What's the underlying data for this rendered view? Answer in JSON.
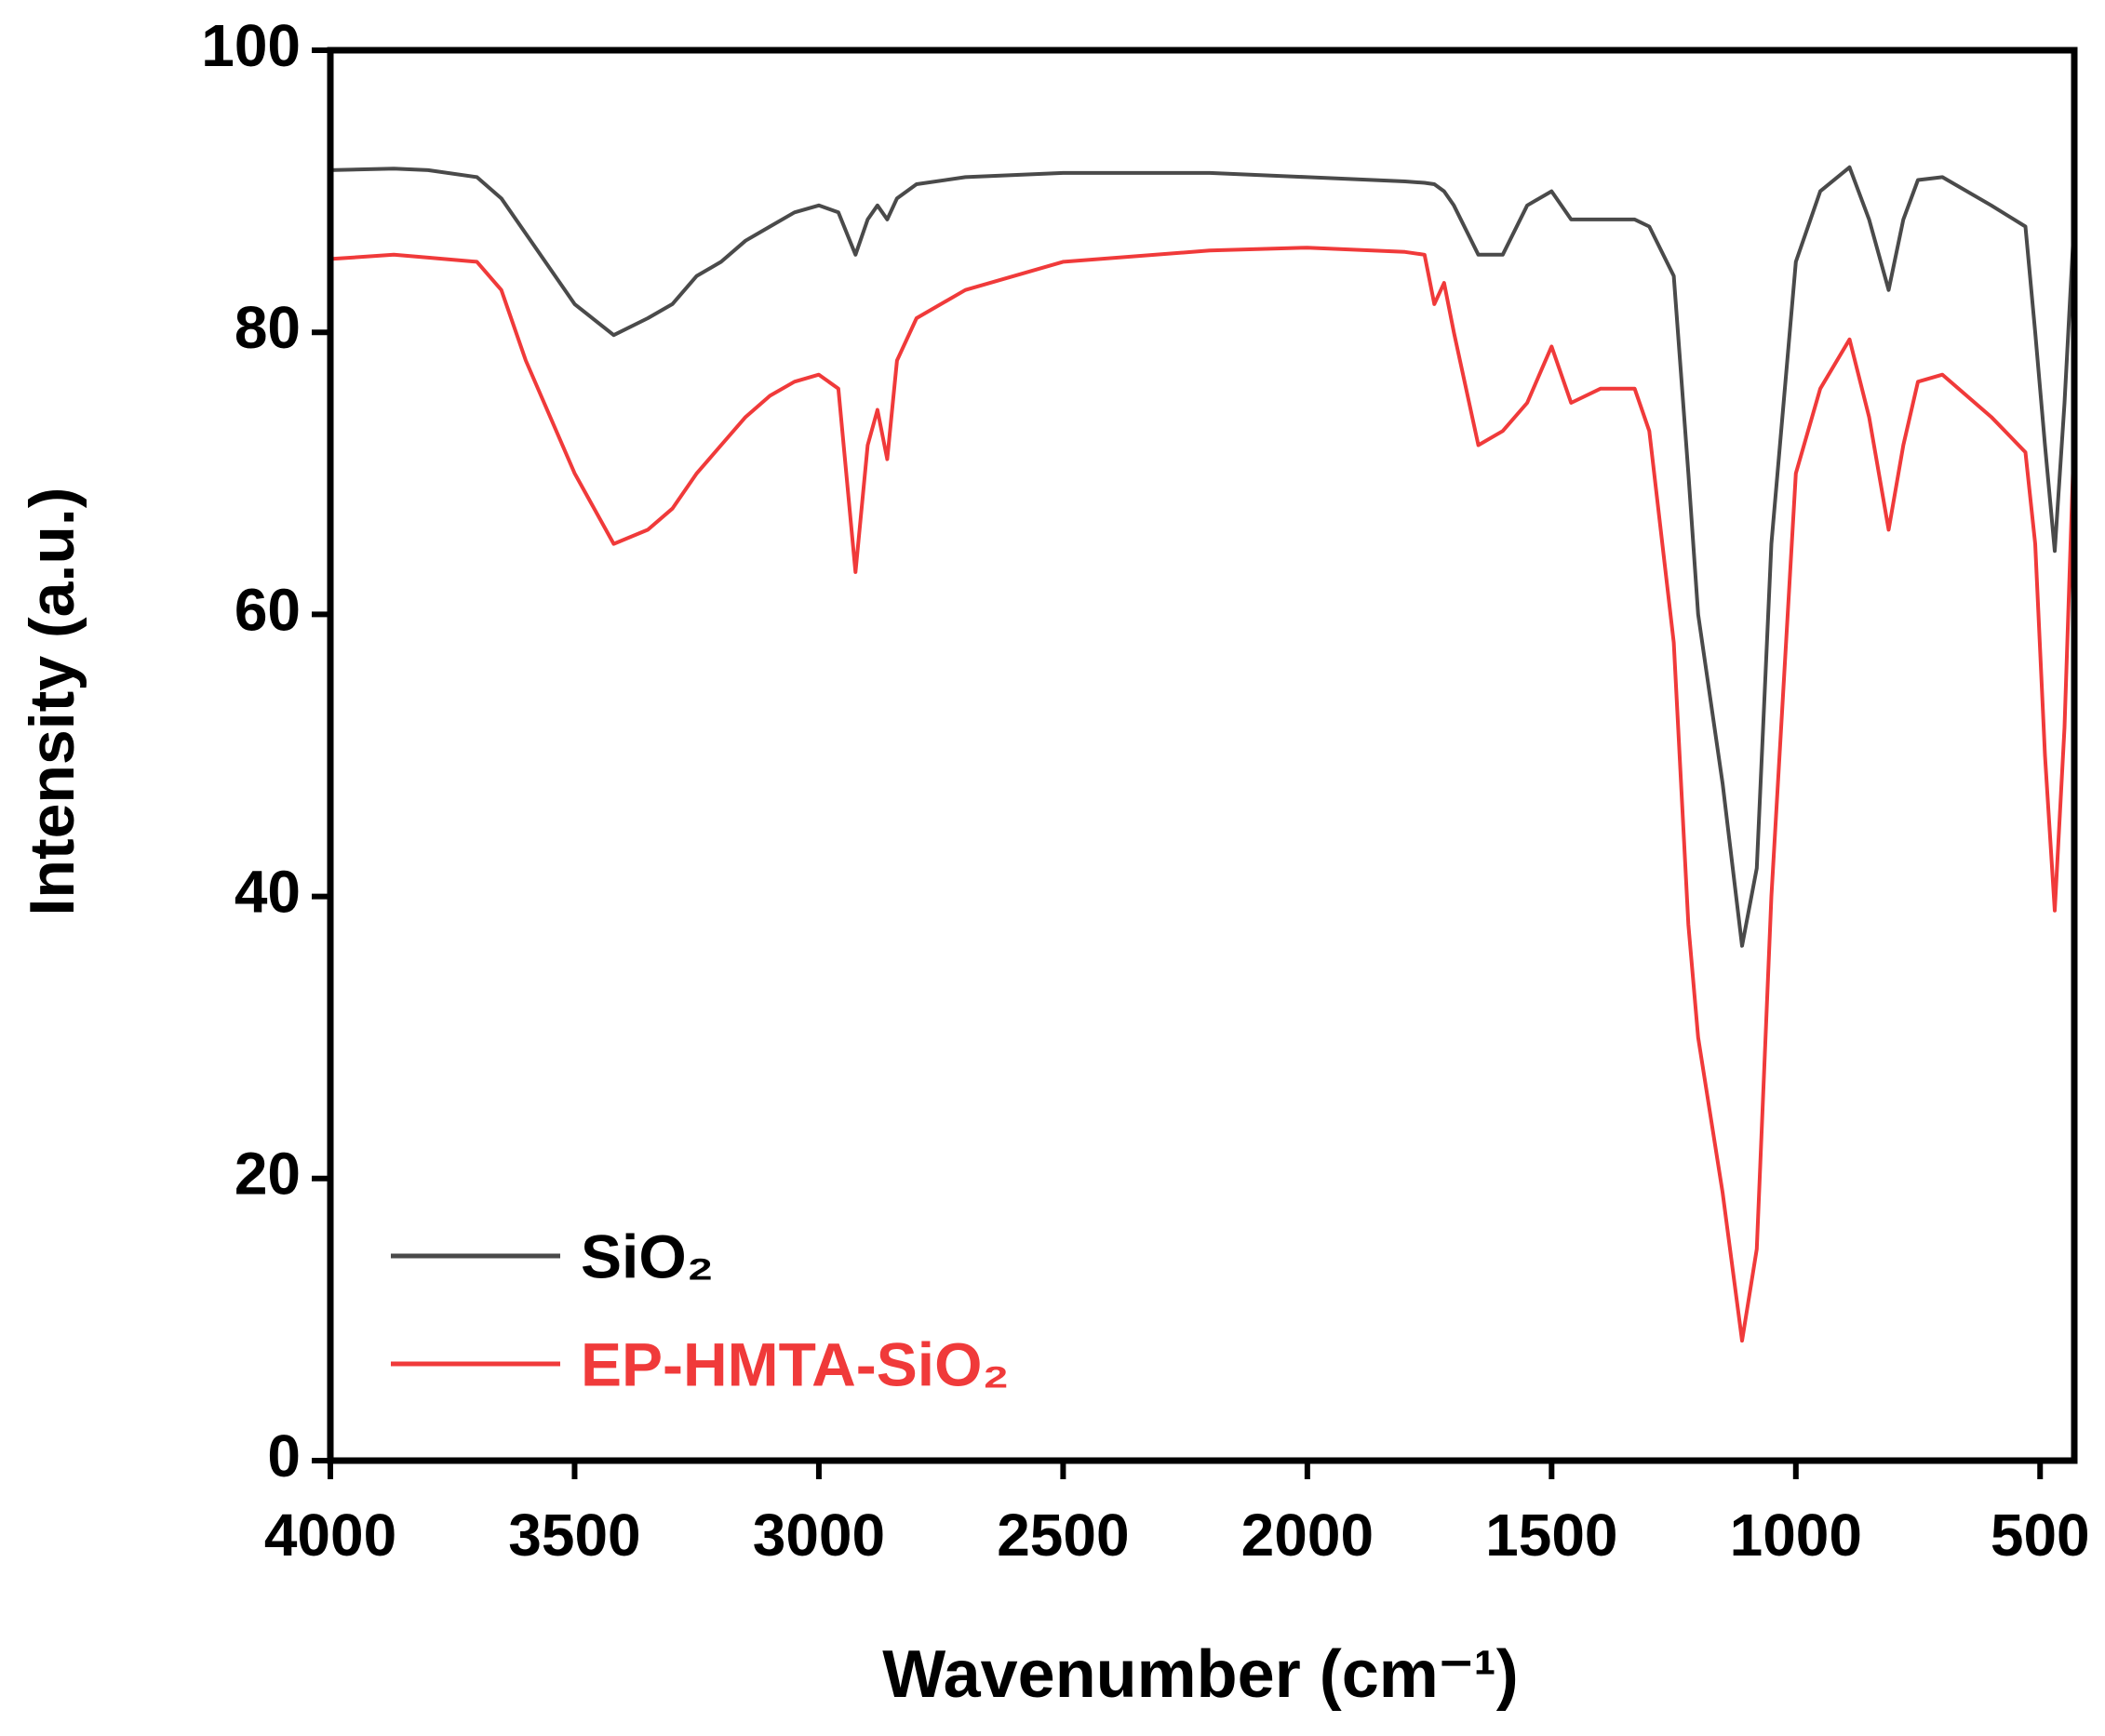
{
  "chart_data": {
    "type": "line",
    "x_label": "Wavenumber (cm⁻¹)",
    "y_label": "Intensity (a.u.)",
    "x": [
      4000,
      3870,
      3800,
      3700,
      3650,
      3600,
      3500,
      3420,
      3350,
      3300,
      3250,
      3200,
      3150,
      3100,
      3050,
      3000,
      2960,
      2925,
      2900,
      2880,
      2860,
      2840,
      2800,
      2700,
      2500,
      2200,
      2000,
      1800,
      1760,
      1740,
      1720,
      1700,
      1650,
      1600,
      1550,
      1500,
      1460,
      1400,
      1330,
      1300,
      1250,
      1220,
      1200,
      1150,
      1110,
      1080,
      1050,
      1000,
      950,
      890,
      850,
      810,
      780,
      750,
      700,
      600,
      530,
      510,
      490,
      470,
      450,
      430
    ],
    "series": [
      {
        "name": "SiO₂",
        "color": "#4a4a4a",
        "values": [
          91.5,
          91.6,
          91.5,
          91,
          89.5,
          87,
          82,
          79.8,
          81,
          82,
          84,
          85,
          86.5,
          87.5,
          88.5,
          89,
          88.5,
          85.5,
          88,
          89,
          88,
          89.5,
          90.5,
          91,
          91.3,
          91.3,
          91,
          90.7,
          90.6,
          90.5,
          90,
          89,
          85.5,
          85.5,
          89,
          90,
          88,
          88,
          88,
          87.5,
          84,
          70,
          60,
          48,
          36.5,
          42,
          65,
          85,
          90,
          91.7,
          88,
          83,
          88,
          90.8,
          91,
          89,
          87.5,
          80,
          72,
          64.5,
          75,
          88
        ]
      },
      {
        "name": "EP-HMTA-SiO₂",
        "color": "#f03a3a",
        "values": [
          85.2,
          85.5,
          85.3,
          85,
          83,
          78,
          70,
          65,
          66,
          67.5,
          70,
          72,
          74,
          75.5,
          76.5,
          77,
          76,
          63,
          72,
          74.5,
          71,
          78,
          81,
          83,
          85,
          85.8,
          86,
          85.7,
          85.5,
          82,
          83.5,
          80,
          72,
          73,
          75,
          79,
          75,
          76,
          76,
          73,
          58,
          38,
          30,
          19,
          8.5,
          15,
          40,
          70,
          76,
          79.5,
          74,
          66,
          72,
          76.5,
          77,
          74,
          71.5,
          65,
          50,
          39,
          52,
          73
        ]
      }
    ],
    "xlim": [
      4000,
      430
    ],
    "xticks": [
      4000,
      3500,
      3000,
      2500,
      2000,
      1500,
      1000,
      500
    ],
    "ylim": [
      0,
      100
    ],
    "yticks": [
      0,
      20,
      40,
      60,
      80,
      100
    ],
    "legend": "lower left"
  }
}
